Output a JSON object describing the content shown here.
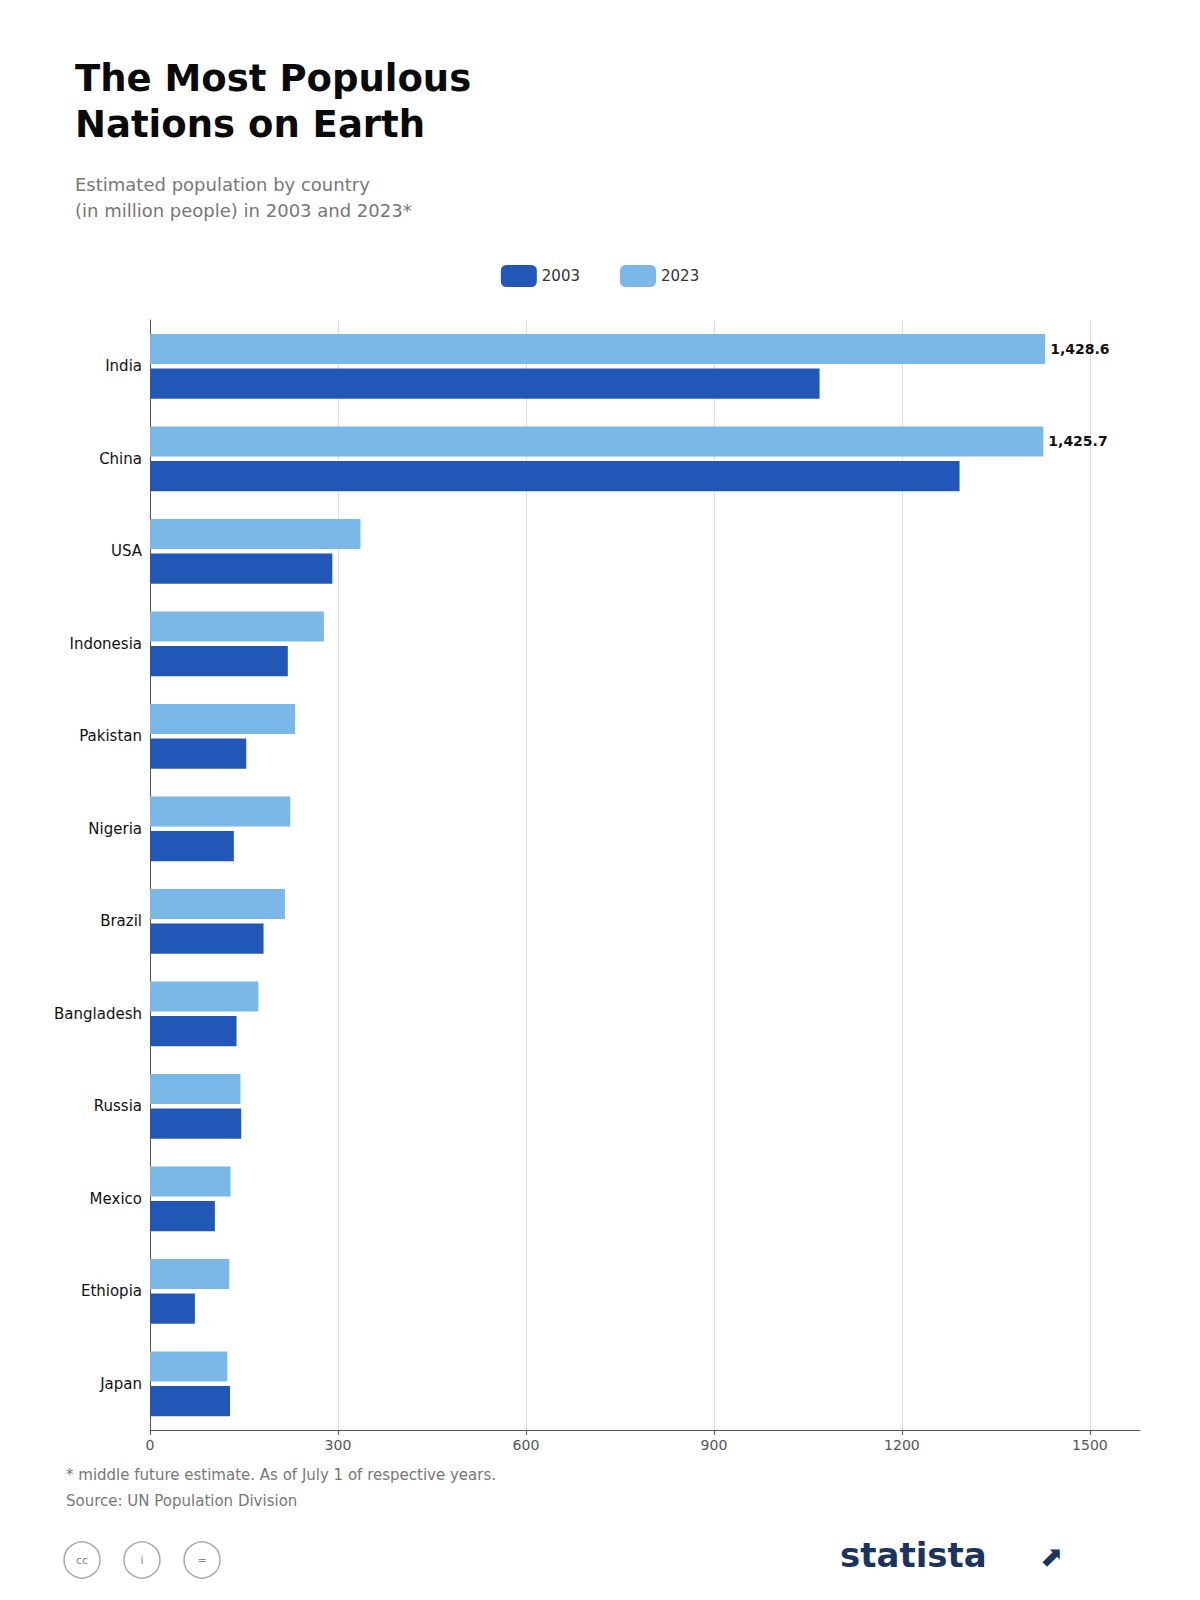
{
  "chart_data": {
    "type": "bar",
    "orientation": "horizontal",
    "title": "The Most Populous\nNations on Earth",
    "subtitle": "Estimated population by country\n(in million people) in 2003 and 2023*",
    "categories": [
      "India",
      "China",
      "USA",
      "Indonesia",
      "Pakistan",
      "Nigeria",
      "Brazil",
      "Bangladesh",
      "Russia",
      "Mexico",
      "Ethiopia",
      "Japan"
    ],
    "series": [
      {
        "name": "2003",
        "color": "#2158B8",
        "values": [
          1068.6,
          1292.0,
          291.0,
          219.9,
          153.6,
          133.8,
          181.2,
          138.1,
          145.6,
          103.5,
          71.6,
          127.7
        ]
      },
      {
        "name": "2023",
        "color": "#7AB8E8",
        "values": [
          1428.6,
          1425.7,
          335.9,
          277.5,
          231.4,
          223.8,
          215.3,
          173.0,
          144.4,
          128.5,
          126.5,
          123.3
        ],
        "value_labels": [
          "1,428.6",
          "1,425.7",
          null,
          null,
          null,
          null,
          null,
          null,
          null,
          null,
          null,
          null
        ]
      }
    ],
    "xlim": [
      0,
      1580
    ],
    "xticks": [
      0,
      300,
      600,
      900,
      1200,
      1500
    ],
    "grid": true,
    "legend": "top",
    "annotations": [
      "* middle future estimate. As of July 1 of respective years.",
      "Source: UN Population Division",
      "statista",
      "⬈",
      "cc",
      "i",
      "="
    ]
  }
}
